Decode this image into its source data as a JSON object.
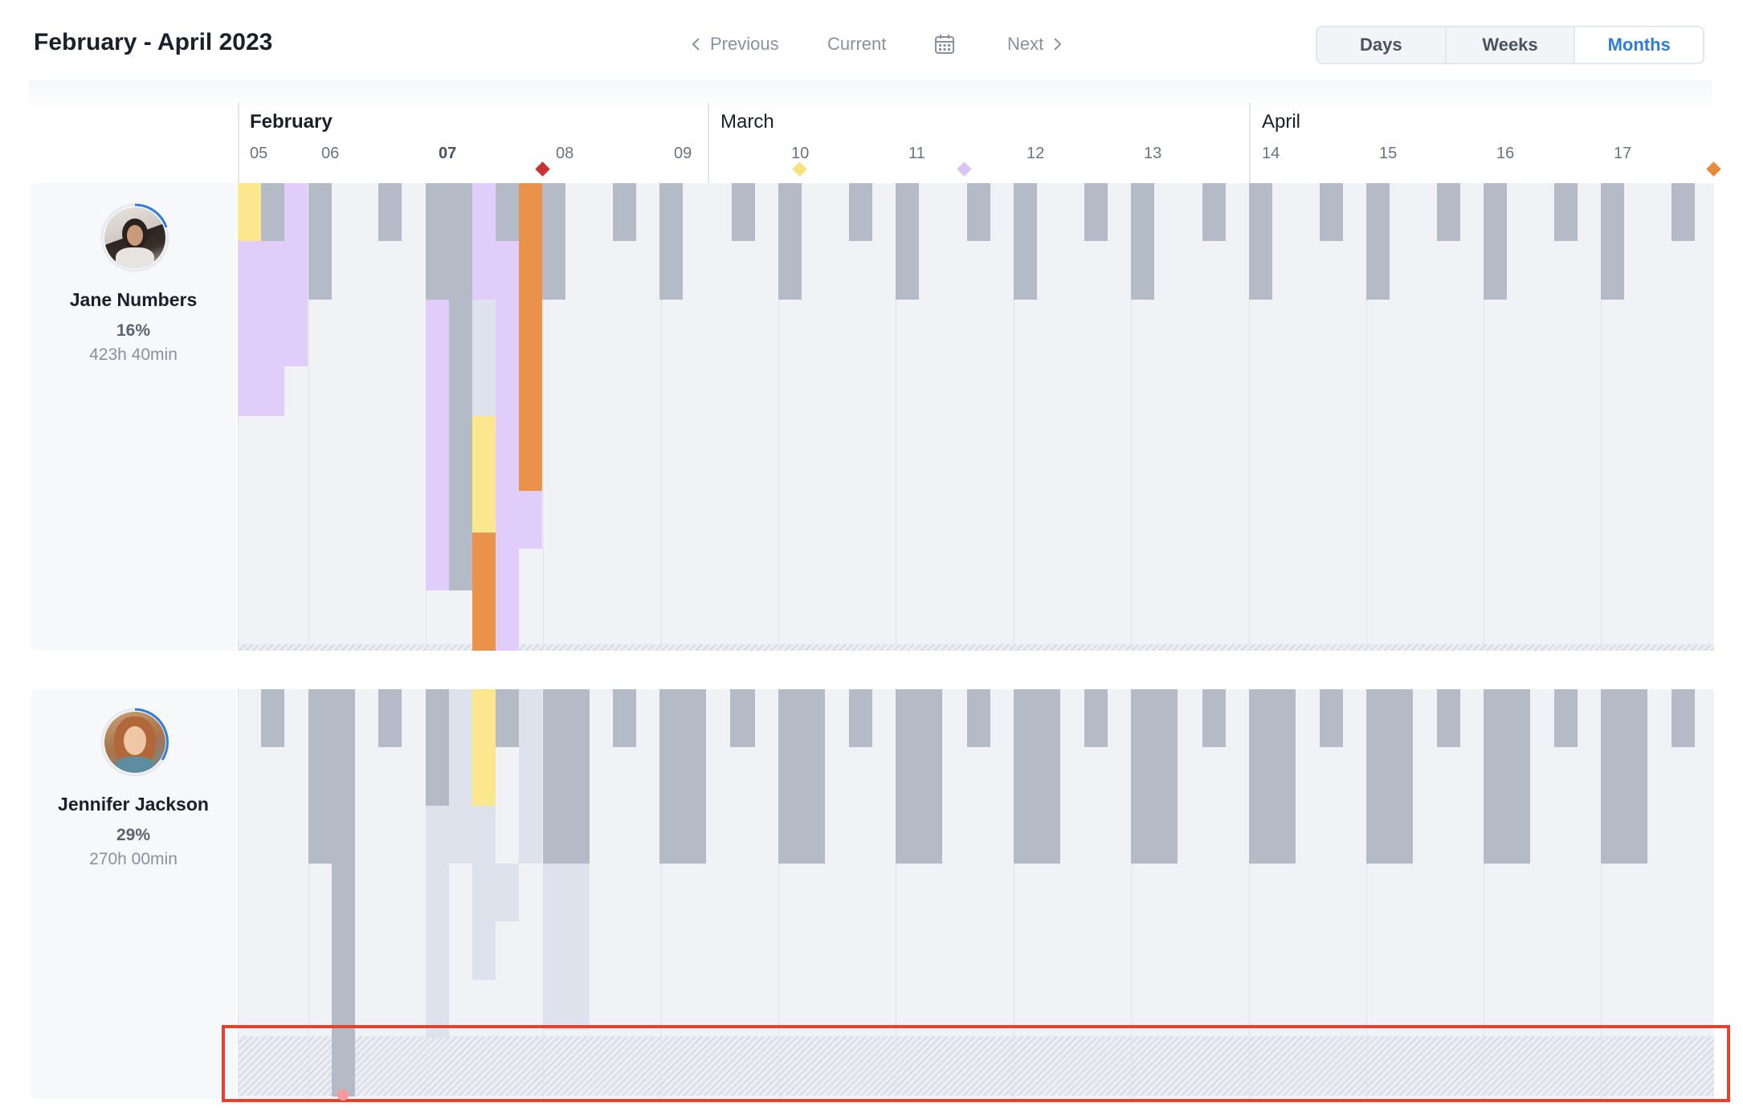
{
  "header": {
    "title": "February - April 2023",
    "nav": {
      "previous": "Previous",
      "current": "Current",
      "next": "Next"
    },
    "view_modes": [
      "Days",
      "Weeks",
      "Months"
    ],
    "active_view": "Months"
  },
  "timeline": {
    "months": [
      "February",
      "March",
      "April"
    ],
    "weeks": [
      "05",
      "06",
      "07",
      "08",
      "09",
      "10",
      "11",
      "12",
      "13",
      "14",
      "15",
      "16",
      "17"
    ],
    "current_week": "07",
    "milestone_colors": [
      "#c83232",
      "#f5e27c",
      "#d8c4f5",
      "#e88a3c"
    ]
  },
  "colors": {
    "gray_bar": "#b4bac6",
    "light_bar": "#dde2ec",
    "purple": "#e1cdfa",
    "yellow": "#fbe88e",
    "orange": "#e8924c",
    "lane": "#f1f2f6",
    "accent": "#2f7bd9",
    "highlight": "#e0432f"
  },
  "people": [
    {
      "name": "Jane Numbers",
      "percent": "16%",
      "hours": "423h 40min"
    },
    {
      "name": "Jennifer Jackson",
      "percent": "29%",
      "hours": "270h 00min"
    }
  ]
}
